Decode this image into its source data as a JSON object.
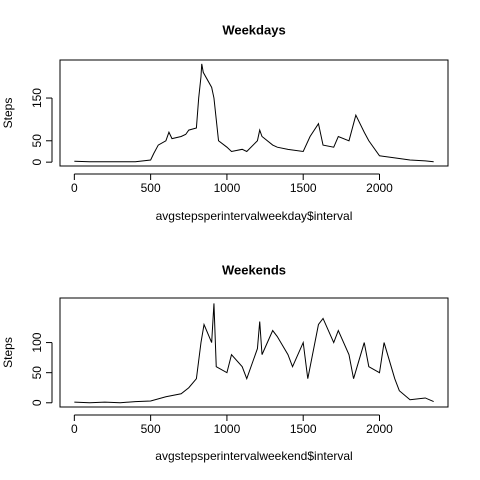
{
  "chart_data": [
    {
      "type": "line",
      "title": "Weekdays",
      "x_label": "avgstepsperintervalweekday$interval",
      "y_label": "Steps",
      "color": "#000000",
      "x": [
        0,
        100,
        200,
        300,
        400,
        500,
        520,
        550,
        600,
        620,
        640,
        700,
        730,
        750,
        800,
        815,
        830,
        835,
        845,
        900,
        915,
        930,
        945,
        1000,
        1030,
        1100,
        1130,
        1200,
        1215,
        1230,
        1300,
        1330,
        1400,
        1500,
        1545,
        1600,
        1630,
        1700,
        1730,
        1800,
        1830,
        1845,
        1900,
        1930,
        2000,
        2100,
        2200,
        2300,
        2355
      ],
      "values": [
        2,
        1,
        1,
        1,
        1,
        5,
        20,
        40,
        50,
        70,
        55,
        60,
        65,
        75,
        80,
        150,
        200,
        230,
        210,
        175,
        150,
        100,
        50,
        35,
        25,
        30,
        25,
        50,
        75,
        60,
        40,
        35,
        30,
        25,
        60,
        90,
        40,
        35,
        60,
        50,
        90,
        110,
        70,
        50,
        15,
        10,
        5,
        3,
        1
      ],
      "xlim": [
        -94,
        2449
      ],
      "ylim": [
        -9,
        239
      ],
      "xticks": [
        0,
        500,
        1000,
        1500,
        2000
      ],
      "yticks": [
        0,
        50,
        150
      ]
    },
    {
      "type": "line",
      "title": "Weekends",
      "x_label": "avgstepsperintervalweekend$interval",
      "y_label": "Steps",
      "color": "#000000",
      "x": [
        0,
        100,
        200,
        300,
        400,
        500,
        600,
        700,
        750,
        800,
        830,
        850,
        900,
        915,
        930,
        1000,
        1030,
        1100,
        1130,
        1200,
        1215,
        1230,
        1300,
        1330,
        1400,
        1430,
        1500,
        1530,
        1600,
        1630,
        1700,
        1730,
        1800,
        1830,
        1900,
        1930,
        2000,
        2030,
        2100,
        2130,
        2200,
        2300,
        2355
      ],
      "values": [
        1,
        0,
        1,
        0,
        2,
        3,
        10,
        15,
        25,
        40,
        100,
        130,
        100,
        165,
        60,
        50,
        80,
        60,
        40,
        90,
        135,
        80,
        120,
        110,
        80,
        60,
        100,
        40,
        130,
        140,
        100,
        120,
        80,
        40,
        100,
        60,
        50,
        100,
        40,
        20,
        5,
        8,
        2
      ],
      "xlim": [
        -94,
        2449
      ],
      "ylim": [
        -7,
        174
      ],
      "xticks": [
        0,
        500,
        1000,
        1500,
        2000
      ],
      "yticks": [
        0,
        50,
        100
      ]
    }
  ]
}
